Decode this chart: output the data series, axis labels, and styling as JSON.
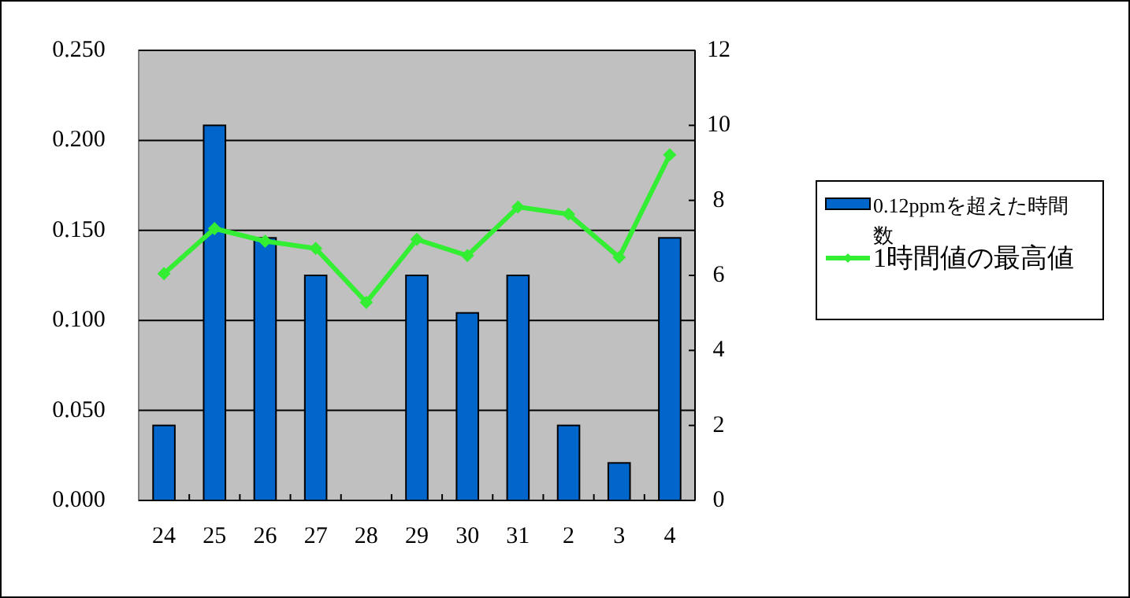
{
  "chart_data": {
    "type": "bar",
    "categories": [
      "24",
      "25",
      "26",
      "27",
      "28",
      "29",
      "30",
      "31",
      "2",
      "3",
      "4"
    ],
    "series": [
      {
        "name": "0.12ppmを超えた時間数",
        "axis": "y2",
        "color": "#0066cc",
        "values": [
          2,
          10,
          7,
          6,
          0,
          6,
          5,
          6,
          2,
          1,
          7
        ]
      },
      {
        "name": "1時間値の最高値",
        "type": "line",
        "color": "#33ee33",
        "marker": "diamond",
        "values": [
          0.126,
          0.151,
          0.144,
          0.14,
          0.11,
          0.145,
          0.136,
          0.163,
          0.159,
          0.135,
          0.192
        ]
      }
    ],
    "ylim": [
      0,
      0.25
    ],
    "yticks": [
      {
        "value": 0,
        "label": "0.000"
      },
      {
        "value": 0.05,
        "label": "0.050"
      },
      {
        "value": 0.1,
        "label": "0.100"
      },
      {
        "value": 0.15,
        "label": "0.150"
      },
      {
        "value": 0.2,
        "label": "0.200"
      },
      {
        "value": 0.25,
        "label": "0.250"
      }
    ],
    "y2lim": [
      0,
      12
    ],
    "y2ticks": [
      0,
      2,
      4,
      6,
      8,
      10,
      12
    ],
    "grid": "y",
    "legend": "right"
  }
}
